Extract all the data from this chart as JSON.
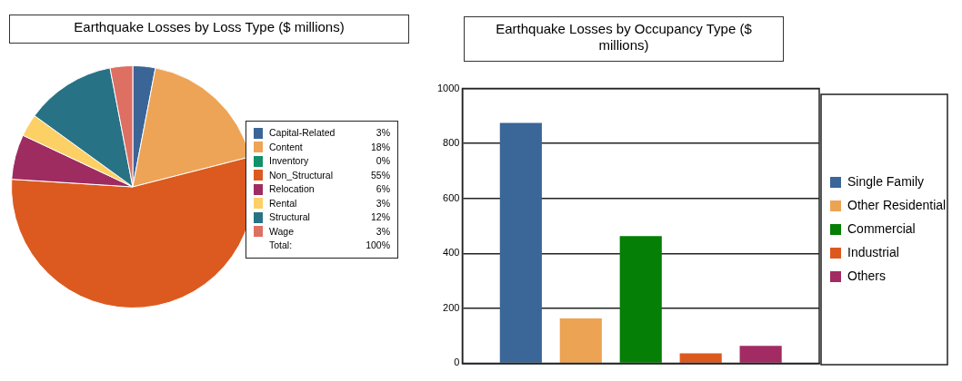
{
  "chart_data": [
    {
      "type": "pie",
      "title": "Earthquake Losses by Loss Type ($ millions)",
      "categories": [
        "Capital-Related",
        "Content",
        "Inventory",
        "Non_Structural",
        "Relocation",
        "Rental",
        "Structural",
        "Wage"
      ],
      "values": [
        3,
        18,
        0,
        55,
        6,
        3,
        12,
        3
      ],
      "colors": [
        "#3b6597",
        "#eda456",
        "#11906a",
        "#dc5a1f",
        "#9e2c61",
        "#fdd066",
        "#287286",
        "#dd6f63"
      ],
      "value_labels": [
        "3%",
        "18%",
        "0%",
        "55%",
        "6%",
        "3%",
        "12%",
        "3%"
      ],
      "legend": "right",
      "annotations": [
        "Total:",
        "100%"
      ]
    },
    {
      "type": "bar",
      "title": "Earthquake Losses by Occupancy Type ($ millions)",
      "categories": [
        null
      ],
      "series": [
        {
          "name": "Single Family",
          "color": "#3a6698",
          "values": [
            875
          ]
        },
        {
          "name": "Other Residential",
          "color": "#eca354",
          "values": [
            163
          ]
        },
        {
          "name": "Commercial",
          "color": "#057f05",
          "values": [
            463
          ]
        },
        {
          "name": "Industrial",
          "color": "#dc591e",
          "values": [
            36
          ]
        },
        {
          "name": "Others",
          "color": "#a12b62",
          "values": [
            63
          ]
        }
      ],
      "ylim": [
        0,
        1000
      ],
      "yticks": [
        0,
        200,
        400,
        600,
        800,
        1000
      ],
      "grid": "y",
      "legend": "right",
      "tick_labels": "y"
    }
  ]
}
